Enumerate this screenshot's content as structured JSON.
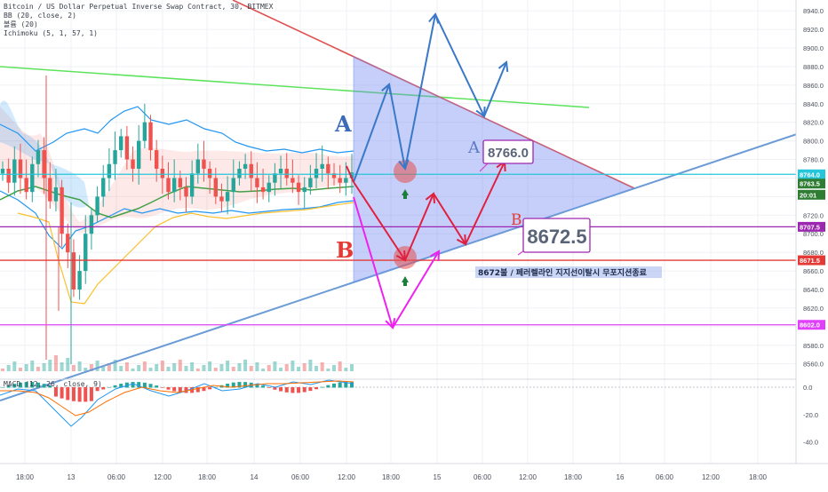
{
  "legend": {
    "symbol": "Bitcoin / US Dollar Perpetual Inverse Swap Contract, 30, BITMEX",
    "bb": "BB (20, close, 2)",
    "vol": "볼륨 (20)",
    "ichimoku": "Ichimoku (5, 1, 57, 1)"
  },
  "macd_label": "MACD (12, 26, close, 9)",
  "price_axis": {
    "ticks": [
      "8940.0",
      "8920.0",
      "8900.0",
      "8880.0",
      "8860.0",
      "8840.0",
      "8820.0",
      "8800.0",
      "8780.0",
      "8760.0",
      "8740.0",
      "8720.0",
      "8700.0",
      "8680.0",
      "8660.0",
      "8640.0",
      "8620.0",
      "8600.0",
      "8580.0",
      "8560.0"
    ],
    "range": [
      8553,
      8944
    ]
  },
  "macd_axis": {
    "ticks": [
      "0.0",
      "-20.0",
      "-40.0"
    ],
    "range": [
      -48,
      4
    ]
  },
  "time_axis": {
    "ticks": [
      "18:00",
      "13",
      "06:00",
      "12:00",
      "18:00",
      "14",
      "06:00",
      "12:00",
      "18:00",
      "15",
      "06:00",
      "12:00",
      "18:00",
      "16",
      "06:00",
      "12:00",
      "18:00"
    ]
  },
  "badges": [
    {
      "name": "badge-8764",
      "text": "8764.0",
      "price": 8764,
      "color": "#26c6da"
    },
    {
      "name": "badge-8763",
      "text": "8763.5",
      "price": 8754,
      "color": "#2e7d32"
    },
    {
      "name": "badge-countdown",
      "text": "20:01",
      "price": 8742,
      "color": "#2e7d32"
    },
    {
      "name": "badge-8707",
      "text": "8707.5",
      "price": 8707.5,
      "color": "#9c27b0"
    },
    {
      "name": "badge-8671",
      "text": "8671.5",
      "price": 8671.5,
      "color": "#e53935"
    },
    {
      "name": "badge-8602",
      "text": "8602.0",
      "price": 8602,
      "color": "#e040fb"
    }
  ],
  "hlines": [
    {
      "name": "cyan-line",
      "price": 8764,
      "color": "#26c6da"
    },
    {
      "name": "purple-line",
      "price": 8707.5,
      "color": "#9c27b0"
    },
    {
      "name": "red-line",
      "price": 8671.5,
      "color": "#e53935"
    },
    {
      "name": "magenta-line",
      "price": 8602,
      "color": "#e040fb"
    }
  ],
  "annotations": {
    "label_a_main": "A",
    "label_b_main": "B",
    "label_a_small": "A",
    "label_b_small": "B",
    "callout_8766": "8766.0",
    "callout_8672": "8672.5",
    "korean_note": "8672불 / 페러렐라인 지지선이탈시 무포지션종료"
  },
  "colors": {
    "bull": "#26a69a",
    "bear": "#ef5350",
    "bb_band": "#2196f3",
    "bb_basis": "#ff6d00",
    "green_trend": "#4caf50",
    "red_trend": "#e05050",
    "blue_trend": "#6a9bd6",
    "triangle_fill": "#8c9cf2",
    "path_blue": "#3a78c8",
    "path_red": "#e02040",
    "path_magenta": "#ee22ee"
  },
  "chart_data": {
    "type": "candlestick",
    "series": [
      {
        "name": "Bitcoin / US Dollar Perpetual Inverse Swap Contract, 30, BITMEX",
        "candles_approx_close": [
          8770,
          8755,
          8780,
          8760,
          8745,
          8775,
          8790,
          8760,
          8735,
          8750,
          8700,
          8680,
          8640,
          8660,
          8700,
          8720,
          8740,
          8760,
          8775,
          8790,
          8805,
          8780,
          8770,
          8800,
          8820,
          8790,
          8770,
          8760,
          8745,
          8760,
          8750,
          8740,
          8765,
          8780,
          8770,
          8760,
          8740,
          8735,
          8745,
          8760,
          8770,
          8775,
          8760,
          8750,
          8745,
          8755,
          8765,
          8770,
          8760,
          8755,
          8745,
          8750,
          8760,
          8770,
          8775,
          8765,
          8760,
          8755,
          8760,
          8766
        ]
      }
    ],
    "hlines": [
      8764,
      8707.5,
      8671.5,
      8602
    ],
    "callouts": [
      8766.0,
      8672.5
    ],
    "ylim": [
      8553,
      8944
    ]
  }
}
